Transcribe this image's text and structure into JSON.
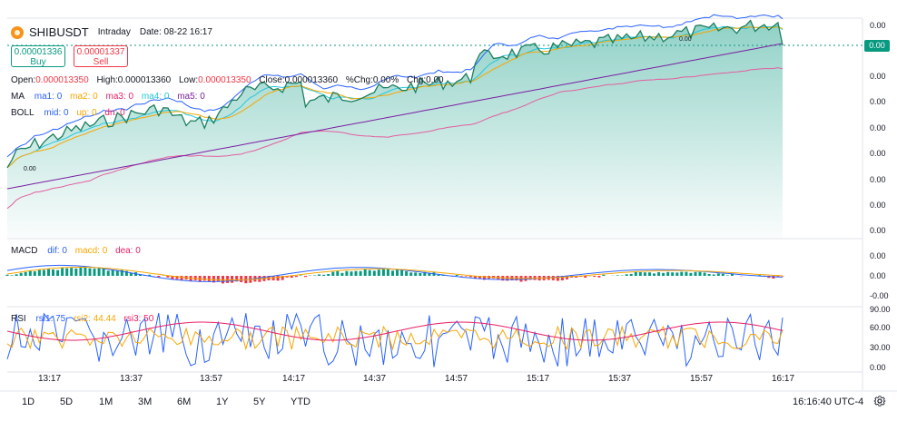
{
  "symbol": {
    "name": "SHIBUSDT",
    "interval": "Intraday",
    "date_label": "Date: 08-22 16:17"
  },
  "buy": {
    "price": "0.00001336",
    "label": "Buy"
  },
  "sell": {
    "price": "0.00001337",
    "label": "Sell"
  },
  "ohlc": {
    "open_label": "Open:",
    "open": "0.000013350",
    "high_label": "High:",
    "high": "0.000013360",
    "low_label": "Low:",
    "low": "0.000013350",
    "close_label": "Close:",
    "close": "0.000013360",
    "pchg": "%Chg:0.00%",
    "chg": "Chg:0.00"
  },
  "ma": {
    "label": "MA",
    "items": [
      "ma1: 0",
      "ma2: 0",
      "ma3: 0",
      "ma4: 0",
      "ma5: 0"
    ]
  },
  "boll": {
    "label": "BOLL",
    "items": [
      "mid: 0",
      "up: 0",
      "dn: 0"
    ]
  },
  "macd": {
    "label": "MACD",
    "items": [
      "dif: 0",
      "macd: 0",
      "dea: 0"
    ]
  },
  "rsi": {
    "label": "RSI",
    "items": [
      "rsi1: 75",
      "rsi2: 44.44",
      "rsi3: 50"
    ]
  },
  "main_yaxis": [
    "0.00",
    "0.00",
    "0.00",
    "0.00",
    "0.00",
    "0.00",
    "0.00",
    "0.00",
    "0.00"
  ],
  "price_tag": "0.00",
  "chart_marker_left": "0.00",
  "chart_marker_top": "0.00",
  "macd_yaxis": [
    "0.00",
    "0.00",
    "-0.00"
  ],
  "rsi_yaxis": [
    "90.00",
    "60.00",
    "30.00",
    "0.00"
  ],
  "xaxis": [
    "13:17",
    "13:37",
    "13:57",
    "14:17",
    "14:37",
    "14:57",
    "15:17",
    "15:37",
    "15:57",
    "16:17"
  ],
  "ranges": [
    "1D",
    "5D",
    "1M",
    "3M",
    "6M",
    "1Y",
    "5Y",
    "YTD"
  ],
  "clock": "16:16:40 UTC-4",
  "colors": {
    "up": "#089981",
    "down": "#f23645",
    "ma1": "#2962ff",
    "ma2": "#f7a600",
    "ma3": "#e91e63",
    "ma4": "#26c6da",
    "ma5": "#7b1fa2",
    "boll_up": "#2962ff",
    "boll_dn": "#e35d9e",
    "price": "#089981"
  },
  "icons": {
    "settings": "gear-icon",
    "symbol": "shiba-coin-icon"
  }
}
